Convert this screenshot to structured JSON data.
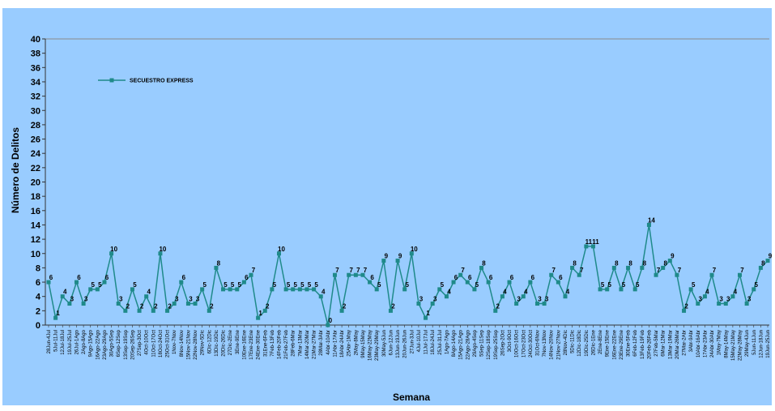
{
  "chart_data": {
    "type": "line",
    "title": "",
    "xlabel": "Semana",
    "ylabel": "Número de Delitos",
    "ylim": [
      0,
      40
    ],
    "y_ticks": [
      0,
      2,
      4,
      6,
      8,
      10,
      12,
      14,
      16,
      18,
      20,
      22,
      24,
      26,
      28,
      30,
      32,
      34,
      36,
      38,
      40
    ],
    "grid": false,
    "legend_position": "top-left",
    "colors": {
      "page_background": "#ffffff",
      "chart_background": "#99ccff",
      "series": "#1f8a8a",
      "axis": "#333333"
    },
    "categories": [
      "28Jun-4Jul",
      "5Jul-11Jul",
      "12Jul-18Jul",
      "19Jul-25Jul",
      "26Jul-1Ago",
      "2Ago-8Ago",
      "9Ago-15Ago",
      "16Ago-22Ago",
      "23Ago-29Ago",
      "30Ago-5Sep",
      "6Sep-12Sep",
      "13Sep-19Sep",
      "20Sep-26Sep",
      "27Sep-3Oct",
      "4Oct-10Oct",
      "11Oct-17Oct",
      "18Oct-24Oct",
      "25Oct-31Oct",
      "1Nov-7Nov",
      "8Nov-14Nov",
      "15Nov-21Nov",
      "22Nov-28Nov",
      "29Nov-5Dic",
      "6Dic-12Dic",
      "13Dic-19Dic",
      "20Dic-26Dic",
      "27Dic-2Ene",
      "3Ene-9Ene",
      "10Ene-16Ene",
      "17Ene-23Ene",
      "24Ene-30Ene",
      "31Ene-6Feb",
      "7Feb-13Feb",
      "14Feb-20Feb",
      "21Feb-27Feb",
      "28Feb-6Mar",
      "7Mar-13Mar",
      "14Mar-20Mar",
      "21Mar-27Mar",
      "28Mar-3Abr",
      "4Abr-10Abr",
      "11Abr-17Abr",
      "18Abr-24Abr",
      "25Abr-1May",
      "2May-8May",
      "9May-15May",
      "16May-22May",
      "23May-29May",
      "30May-5Jun",
      "6Jun-12Jun",
      "13Jun-19Jun",
      "20Jun-26Jun",
      "27Jun-3Jul",
      "4Jul-10Jul",
      "11Jul-17Jul",
      "18Jul-24Jul",
      "25Jul-31Jul",
      "1Ago-7Ago",
      "8Ago-14Ago",
      "15Ago-21Ago",
      "22Ago-28Ago",
      "29Ago-4Sep",
      "5Sep-11Sep",
      "12Sep-18Sep",
      "19Sep-25Sep",
      "26Sep-2Oct",
      "3Oct-9Oct",
      "10Oct-16Oct",
      "17Oct-23Oct",
      "24Oct-30Oct",
      "31Oct-6Nov",
      "7Nov-13Nov",
      "14Nov-20Nov",
      "21Nov-27Nov",
      "28Nov-4Dic",
      "5Dic-11Dic",
      "12Dic-18Dic",
      "19Dic-25Dic",
      "26Dic-1Ene",
      "2Ene-8Ene",
      "9Ene-15Ene",
      "16Ene-22Ene",
      "23Ene-29Ene",
      "30Ene-5Feb",
      "6Feb-12Feb",
      "13Feb-19Feb",
      "20Feb-26Feb",
      "27Feb-5Mar",
      "6Mar-12Mar",
      "13Mar-19Mar",
      "20Mar-26Mar",
      "27Mar-2Abr",
      "3Abr-9Abr",
      "10Abr-16Abr",
      "17Abr-23Abr",
      "24Abr-30Abr",
      "1May-7May",
      "8May-14May",
      "15May-21May",
      "22May-28May",
      "29May-4Jun",
      "5Jun-11Jun",
      "12Jun-18Jun",
      "19Jun-25Jun"
    ],
    "series": [
      {
        "name": "SECUESTRO EXPRESS",
        "values": [
          6,
          1,
          4,
          3,
          6,
          3,
          5,
          5,
          6,
          10,
          3,
          2,
          5,
          2,
          4,
          2,
          10,
          2,
          3,
          6,
          3,
          3,
          5,
          2,
          8,
          5,
          5,
          5,
          6,
          7,
          1,
          2,
          5,
          10,
          5,
          5,
          5,
          5,
          5,
          4,
          0,
          7,
          2,
          7,
          7,
          7,
          6,
          5,
          9,
          2,
          9,
          5,
          10,
          3,
          1,
          3,
          5,
          4,
          6,
          7,
          6,
          5,
          8,
          6,
          2,
          4,
          6,
          3,
          4,
          6,
          3,
          3,
          7,
          6,
          4,
          8,
          7,
          11,
          11,
          5,
          5,
          8,
          5,
          8,
          5,
          8,
          14,
          7,
          8,
          9,
          7,
          2,
          5,
          3,
          4,
          7,
          3,
          3,
          4,
          7,
          3,
          5,
          8,
          9
        ]
      }
    ]
  }
}
